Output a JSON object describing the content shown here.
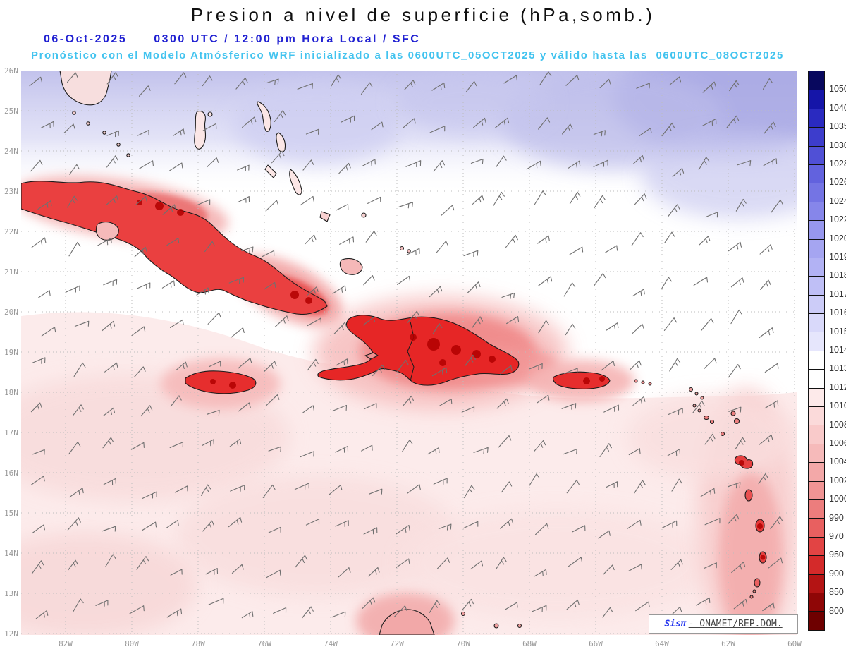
{
  "header": {
    "title": "Presion a nivel de superficie (hPa,somb.)",
    "date": "06-Oct-2025",
    "time_line": "0300 UTC / 12:00 pm Hora Local / SFC",
    "forecast_line": "Pronóstico con el Modelo Atmósferico WRF inicializado a las 0600UTC_05OCT2025 y válido hasta las  0600UTC_08OCT2025"
  },
  "map": {
    "lat_labels": [
      "26N",
      "25N",
      "24N",
      "23N",
      "22N",
      "21N",
      "20N",
      "19N",
      "18N",
      "17N",
      "16N",
      "15N",
      "14N",
      "13N",
      "12N"
    ],
    "lon_labels": [
      "82W",
      "80W",
      "78W",
      "76W",
      "74W",
      "72W",
      "70W",
      "68W",
      "66W",
      "64W",
      "62W",
      "60W"
    ],
    "credit": {
      "prefix": "Sisπ",
      "text": "- ONAMET/REP.DOM."
    }
  },
  "colorbar": {
    "values": [
      1050,
      1040,
      1035,
      1030,
      1028,
      1026,
      1024,
      1022,
      1020,
      1019,
      1018,
      1017,
      1016,
      1015,
      1014,
      1013,
      1012,
      1010,
      1008,
      1006,
      1004,
      1002,
      1000,
      990,
      970,
      950,
      900,
      850,
      800
    ],
    "colors": [
      "#08085e",
      "#1515a8",
      "#2a2ac0",
      "#3d3dcc",
      "#5050d6",
      "#6262de",
      "#7474e4",
      "#8686ea",
      "#9797ee",
      "#a5a5f1",
      "#b2b2f4",
      "#bfbff6",
      "#ccccf8",
      "#d9d9fa",
      "#e6e6fc",
      "#ffffff",
      "#ffffff",
      "#fdeaea",
      "#fbdada",
      "#f9caca",
      "#f6baba",
      "#f3a8a8",
      "#f09494",
      "#ec7d7d",
      "#e86060",
      "#e24444",
      "#d42a2a",
      "#b41414",
      "#8f0606",
      "#6e0000"
    ]
  },
  "chart_data": {
    "type": "heatmap",
    "title": "Presion a nivel de superficie (hPa,somb.)",
    "subtitle": "WRF surface pressure forecast, shaded (hPa) with wind barbs",
    "x_ticks": [
      "82W",
      "80W",
      "78W",
      "76W",
      "74W",
      "72W",
      "70W",
      "68W",
      "66W",
      "64W",
      "62W",
      "60W"
    ],
    "y_ticks": [
      "26N",
      "25N",
      "24N",
      "23N",
      "22N",
      "21N",
      "20N",
      "19N",
      "18N",
      "17N",
      "16N",
      "15N",
      "14N",
      "13N",
      "12N"
    ],
    "legend_values_hpa": [
      1050,
      1040,
      1035,
      1030,
      1028,
      1026,
      1024,
      1022,
      1020,
      1019,
      1018,
      1017,
      1016,
      1015,
      1014,
      1013,
      1012,
      1010,
      1008,
      1006,
      1004,
      1002,
      1000,
      990,
      970,
      950,
      900,
      850,
      800
    ],
    "pattern": "Higher pressure (blue shading ~1015-1020 hPa) across the north Atlantic portion; near-1013-1014 (white) mid-basin; slightly lower values (pale red ~1010-1012) over the southern Caribbean; strong low/red shading over land areas: Cuba, Jamaica, Hispaniola, Puerto Rico and the Lesser Antilles."
  }
}
